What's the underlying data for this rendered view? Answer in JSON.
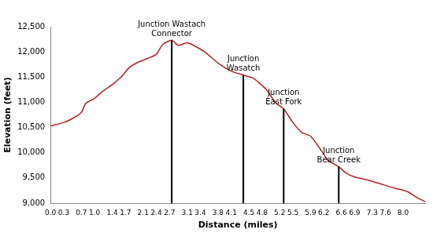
{
  "chart_data": {
    "type": "line",
    "x_label": "Distance (miles)",
    "y_label": "Elevation (feet)",
    "x": [
      0.0,
      0.3,
      0.5,
      0.7,
      0.8,
      1.0,
      1.2,
      1.4,
      1.6,
      1.8,
      2.0,
      2.2,
      2.4,
      2.55,
      2.75,
      2.9,
      3.1,
      3.2,
      3.5,
      3.8,
      4.1,
      4.375,
      4.6,
      4.9,
      5.1,
      5.29,
      5.5,
      5.7,
      5.9,
      6.1,
      6.3,
      6.54,
      6.7,
      6.9,
      7.2,
      7.5,
      7.8,
      8.1,
      8.3,
      8.5
    ],
    "values": [
      10530,
      10600,
      10680,
      10800,
      10980,
      11080,
      11230,
      11350,
      11500,
      11700,
      11800,
      11870,
      11950,
      12150,
      12230,
      12130,
      12180,
      12150,
      12000,
      11780,
      11620,
      11540,
      11480,
      11250,
      11000,
      10870,
      10600,
      10400,
      10330,
      10100,
      9850,
      9720,
      9600,
      9520,
      9460,
      9380,
      9300,
      9230,
      9120,
      9030
    ],
    "color": "#b22222",
    "xlim": [
      0,
      8.5
    ],
    "xticks": [
      {
        "value": 0,
        "label": "0.0"
      },
      0.3,
      0.7,
      {
        "value": 1,
        "label": "1.0"
      },
      1.4,
      1.7,
      2.1,
      2.4,
      2.7,
      3.1,
      3.4,
      3.8,
      4.1,
      4.5,
      4.8,
      5.2,
      5.5,
      5.9,
      6.2,
      6.6,
      6.9,
      7.3,
      7.6,
      {
        "value": 8,
        "label": "8.0"
      }
    ],
    "ylim": [
      9000,
      12500
    ],
    "yticks": [
      {
        "value": 9000,
        "label": "9,000"
      },
      {
        "value": 9500,
        "label": "9,500"
      },
      {
        "value": 10000,
        "label": "10,000"
      },
      {
        "value": 10500,
        "label": "10,500"
      },
      {
        "value": 11000,
        "label": "11,000"
      },
      {
        "value": 11500,
        "label": "11,500"
      },
      {
        "value": 12000,
        "label": "12,000"
      },
      {
        "value": 12500,
        "label": "12,500"
      }
    ],
    "grid": false,
    "annotations": [
      {
        "label": [
          "Junction Wastach",
          "Connector"
        ],
        "x": 2.75,
        "y": 12230
      },
      {
        "label": [
          "Junction",
          "Wasatch"
        ],
        "x": 4.375,
        "y": 11540
      },
      {
        "label": [
          "Junction",
          "East Fork"
        ],
        "x": 5.29,
        "y": 10870
      },
      {
        "label": [
          "Junction",
          "Bear Creek"
        ],
        "x": 6.54,
        "y": 9720
      }
    ]
  }
}
